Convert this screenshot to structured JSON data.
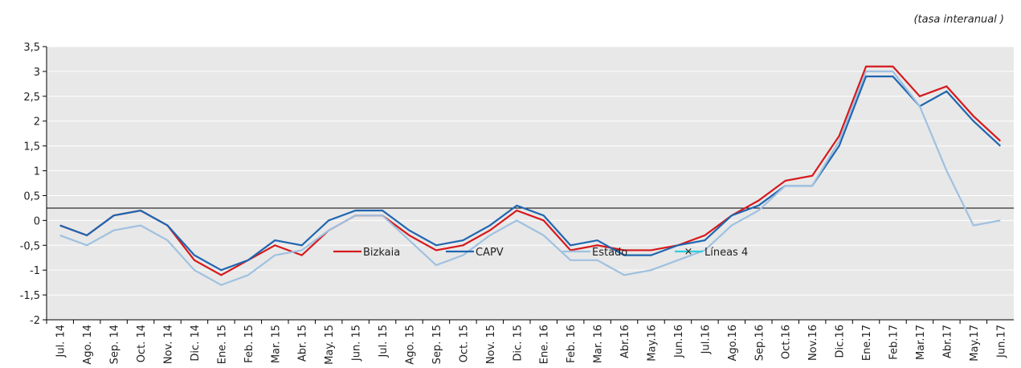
{
  "chart_data": {
    "type": "line",
    "subtitle": "(tasa interanual )",
    "categories": [
      "Jul. 14",
      "Ago. 14",
      "Sep. 14",
      "Oct. 14",
      "Nov. 14",
      "Dic. 14",
      "Ene. 15",
      "Feb. 15",
      "Mar. 15",
      "Abr. 15",
      "May. 15",
      "Jun. 15",
      "Jul. 15",
      "Ago. 15",
      "Sep. 15",
      "Oct. 15",
      "Nov. 15",
      "Dic. 15",
      "Ene. 16",
      "Feb. 16",
      "Mar. 16",
      "Abr.16",
      "May.16",
      "Jun.16",
      "Jul.16",
      "Ago.16",
      "Sep.16",
      "Oct.16",
      "Nov.16",
      "Dic.16",
      "Ene.17",
      "Feb.17",
      "Mar.17",
      "Abr.17",
      "May.17",
      "Jun.17"
    ],
    "series": [
      {
        "name": "Bizkaia",
        "color": "#d7191c",
        "values": [
          -0.1,
          -0.3,
          0.1,
          0.2,
          -0.1,
          -0.8,
          -1.1,
          -0.8,
          -0.5,
          -0.7,
          -0.2,
          0.1,
          0.1,
          -0.3,
          -0.6,
          -0.5,
          -0.2,
          0.2,
          0.0,
          -0.6,
          -0.5,
          -0.6,
          -0.6,
          -0.5,
          -0.3,
          0.1,
          0.4,
          0.8,
          0.9,
          1.7,
          3.1,
          3.1,
          2.5,
          2.7,
          2.1,
          1.6
        ]
      },
      {
        "name": "CAPV",
        "color": "#1f66b0",
        "values": [
          -0.1,
          -0.3,
          0.1,
          0.2,
          -0.1,
          -0.7,
          -1.0,
          -0.8,
          -0.4,
          -0.5,
          0.0,
          0.2,
          0.2,
          -0.2,
          -0.5,
          -0.4,
          -0.1,
          0.3,
          0.1,
          -0.5,
          -0.4,
          -0.7,
          -0.7,
          -0.5,
          -0.4,
          0.1,
          0.3,
          0.7,
          0.7,
          1.5,
          2.9,
          2.9,
          2.3,
          2.6,
          2.0,
          1.5
        ]
      },
      {
        "name": "Estado",
        "color": "#9fc1e0",
        "values": [
          -0.3,
          -0.5,
          -0.2,
          -0.1,
          -0.4,
          -1.0,
          -1.3,
          -1.1,
          -0.7,
          -0.6,
          -0.2,
          0.1,
          0.1,
          -0.4,
          -0.9,
          -0.7,
          -0.3,
          0.0,
          -0.3,
          -0.8,
          -0.8,
          -1.1,
          -1.0,
          -0.8,
          -0.6,
          -0.1,
          0.2,
          0.7,
          0.7,
          1.6,
          3.0,
          3.0,
          2.3,
          1.0,
          -0.1,
          0.0
        ]
      },
      {
        "name": "Líneas 4",
        "color": "#33ccdd",
        "values": [
          null,
          null,
          null,
          null,
          null,
          null,
          null,
          null,
          null,
          null,
          null,
          null,
          null,
          null,
          null,
          null,
          null,
          null,
          null,
          null,
          null,
          null,
          null,
          null,
          null,
          null,
          null,
          null,
          null,
          null,
          null,
          null,
          null,
          null,
          null,
          null
        ]
      }
    ],
    "ylim": [
      -2,
      3.5
    ],
    "yticks": [
      -2,
      {
        "value": -1.5,
        "label": "-1,5"
      },
      -1,
      {
        "value": -0.5,
        "label": "-0,5"
      },
      0,
      {
        "value": 0.5,
        "label": "0,5"
      },
      1,
      {
        "value": 1.5,
        "label": "1,5"
      },
      2,
      {
        "value": 2.5,
        "label": "2,5"
      },
      3,
      {
        "value": 3.5,
        "label": "3,5"
      }
    ],
    "grid": true
  }
}
